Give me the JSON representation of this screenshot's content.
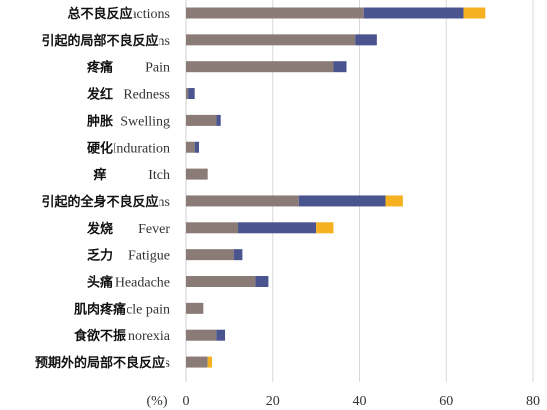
{
  "chart_data": {
    "type": "bar",
    "orientation": "horizontal",
    "stacked": true,
    "xlabel": "(%)",
    "xlim": [
      0,
      80
    ],
    "xticks": [
      0,
      20,
      40,
      60,
      80
    ],
    "grid": "vertical",
    "colors": {
      "grade1": "#8a7b76",
      "grade2": "#4a5590",
      "grade3": "#f5b120",
      "grid": "#d9d9d9",
      "axis": "#cfcfcf"
    },
    "categories": [
      {
        "en": "Total actions",
        "zh": "总不良反应"
      },
      {
        "en": "Sc ons",
        "zh": "引起的局部不良反应"
      },
      {
        "en": "Pain",
        "zh": "疼痛"
      },
      {
        "en": "Redness",
        "zh": "发红"
      },
      {
        "en": "Swelling",
        "zh": "肿胀"
      },
      {
        "en": "Induration",
        "zh": "硬化"
      },
      {
        "en": "Itch",
        "zh": "痒"
      },
      {
        "en": "ci ons",
        "zh": "引起的全身不良反应"
      },
      {
        "en": "Fever",
        "zh": "发烧"
      },
      {
        "en": "Fatigue",
        "zh": "乏力"
      },
      {
        "en": "Headache",
        "zh": "头痛"
      },
      {
        "en": "cle pain",
        "zh": "肌肉疼痛"
      },
      {
        "en": "norexia",
        "zh": "食欲不振"
      },
      {
        "en": "li ns",
        "zh": "预期外的局部不良反应"
      }
    ],
    "series": [
      {
        "values": [
          41,
          39,
          34,
          0.5,
          7,
          2,
          5,
          26,
          12,
          11,
          16,
          4,
          7,
          5
        ]
      },
      {
        "values": [
          23,
          5,
          3,
          1.5,
          1,
          1,
          0,
          20,
          18,
          2,
          3,
          0,
          2,
          0
        ]
      },
      {
        "values": [
          5,
          0,
          0,
          0,
          0,
          0,
          0,
          4,
          4,
          0,
          0,
          0,
          0,
          1
        ]
      }
    ]
  }
}
